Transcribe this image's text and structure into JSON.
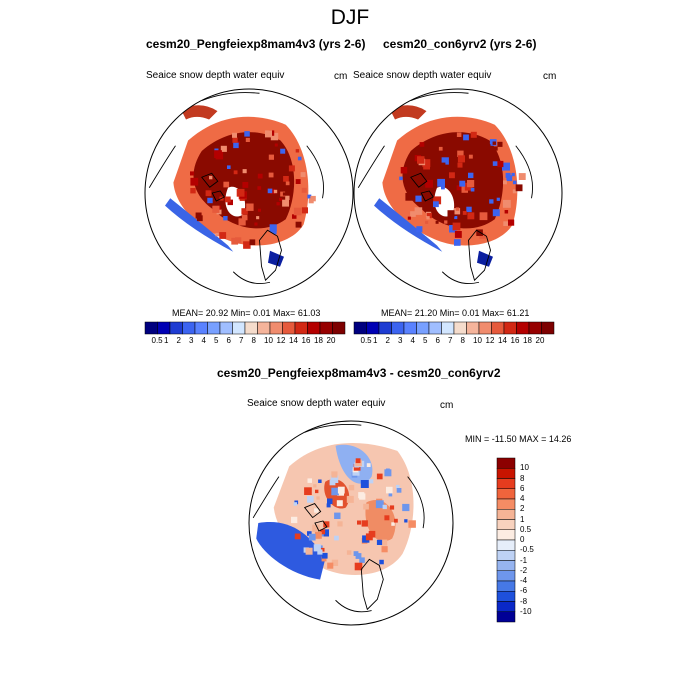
{
  "figure_title": "DJF",
  "chart_data": [
    {
      "type": "heatmap",
      "projection": "polar stereographic (Arctic)",
      "title": "cesm20_Pengfeiexp8mam4v3 (yrs 2-6)",
      "subtitle": "Seaice snow depth water equiv",
      "units": "cm",
      "stats": {
        "mean": "20.92",
        "min": "0.01",
        "max": "61.03"
      },
      "stats_label": "MEAN=  20.92  Min=   0.01  Max=  61.03",
      "colorbar": {
        "levels": [
          "0.5",
          "1",
          "2",
          "3",
          "4",
          "5",
          "6",
          "7",
          "8",
          "10",
          "12",
          "14",
          "16",
          "18",
          "20"
        ],
        "colors": [
          "#00007f",
          "#0000b4",
          "#1e3cd2",
          "#3c64f0",
          "#5a82ff",
          "#78a0ff",
          "#a0beff",
          "#d2e6ff",
          "#f5dccc",
          "#f5b49b",
          "#f08c6e",
          "#e65a3c",
          "#d22814",
          "#b40000",
          "#960000",
          "#7d0000"
        ]
      }
    },
    {
      "type": "heatmap",
      "projection": "polar stereographic (Arctic)",
      "title": "cesm20_con6yrv2 (yrs 2-6)",
      "subtitle": "Seaice snow depth water equiv",
      "units": "cm",
      "stats": {
        "mean": "21.20",
        "min": "0.01",
        "max": "61.21"
      },
      "stats_label": "MEAN=  21.20  Min=   0.01  Max=  61.21",
      "colorbar": {
        "levels": [
          "0.5",
          "1",
          "2",
          "3",
          "4",
          "5",
          "6",
          "7",
          "8",
          "10",
          "12",
          "14",
          "16",
          "18",
          "20"
        ],
        "colors": [
          "#00007f",
          "#0000b4",
          "#1e3cd2",
          "#3c64f0",
          "#5a82ff",
          "#78a0ff",
          "#a0beff",
          "#d2e6ff",
          "#f5dccc",
          "#f5b49b",
          "#f08c6e",
          "#e65a3c",
          "#d22814",
          "#b40000",
          "#960000",
          "#7d0000"
        ]
      }
    },
    {
      "type": "heatmap",
      "projection": "polar stereographic (Arctic)",
      "title": "cesm20_Pengfeiexp8mam4v3 - cesm20_con6yrv2",
      "subtitle": "Seaice snow depth water equiv",
      "units": "cm",
      "stats": {
        "min": "-11.50",
        "max": "14.26"
      },
      "stats_label": "MIN = -11.50 MAX =  14.26",
      "colorbar": {
        "orientation": "vertical",
        "levels": [
          "10",
          "8",
          "6",
          "4",
          "2",
          "1",
          "0.5",
          "0",
          "-0.5",
          "-1",
          "-2",
          "-4",
          "-6",
          "-8",
          "-10"
        ],
        "colors": [
          "#8c0000",
          "#c81400",
          "#e63c1e",
          "#f0643c",
          "#f58c64",
          "#f5b496",
          "#f8d2be",
          "#fcece2",
          "#e6eefa",
          "#bed2f5",
          "#96b4f0",
          "#6e96ec",
          "#4678e6",
          "#1e50dc",
          "#0a28c8",
          "#000096"
        ]
      }
    }
  ]
}
